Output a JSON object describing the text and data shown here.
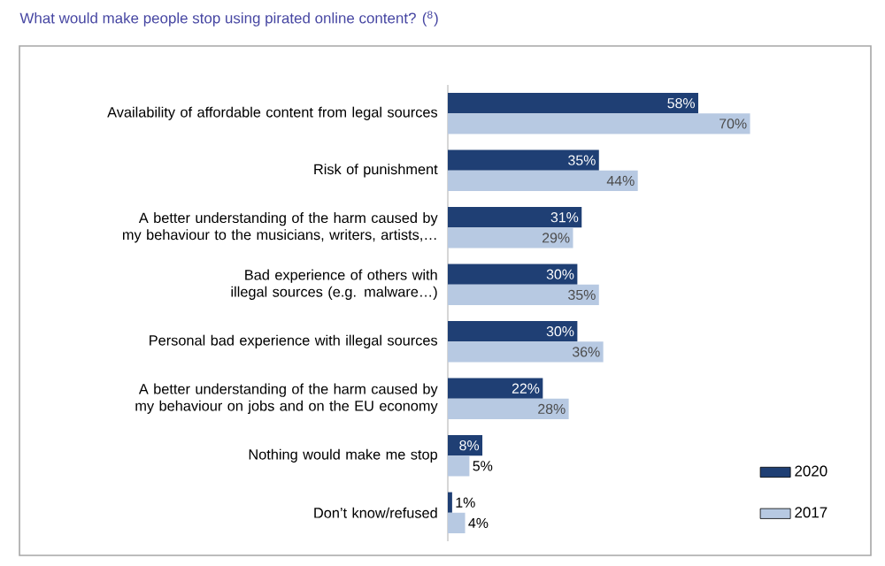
{
  "chart_data": {
    "type": "bar",
    "orientation": "horizontal",
    "title": "What would make people stop using pirated online content? ($^{8}$)",
    "categories": [
      "Availability of affordable content from legal sources",
      "Risk of punishment",
      "A better understanding of the harm caused by my behaviour to the musicians, writers, artists,…",
      "Bad experience of others with illegal sources (e.g. malware…)",
      "Personal bad experience with illegal sources",
      "A better understanding of the harm caused by my behaviour on jobs and on the EU economy",
      "Nothing would make me stop",
      "Don’t know/refused"
    ],
    "series": [
      {
        "name": "2020",
        "color": "#1f3f74",
        "values": [
          58,
          35,
          31,
          30,
          30,
          22,
          8,
          1
        ],
        "value_labels": [
          "58%",
          "35%",
          "31%",
          "30%",
          "30%",
          "22%",
          "8%",
          "1%"
        ]
      },
      {
        "name": "2017",
        "color": "#b7c9e2",
        "values": [
          70,
          44,
          29,
          35,
          36,
          28,
          5,
          4
        ],
        "value_labels": [
          "70%",
          "44%",
          "29%",
          "35%",
          "36%",
          "28%",
          "5%",
          "4%"
        ]
      }
    ],
    "legend": "bottom right"
  }
}
